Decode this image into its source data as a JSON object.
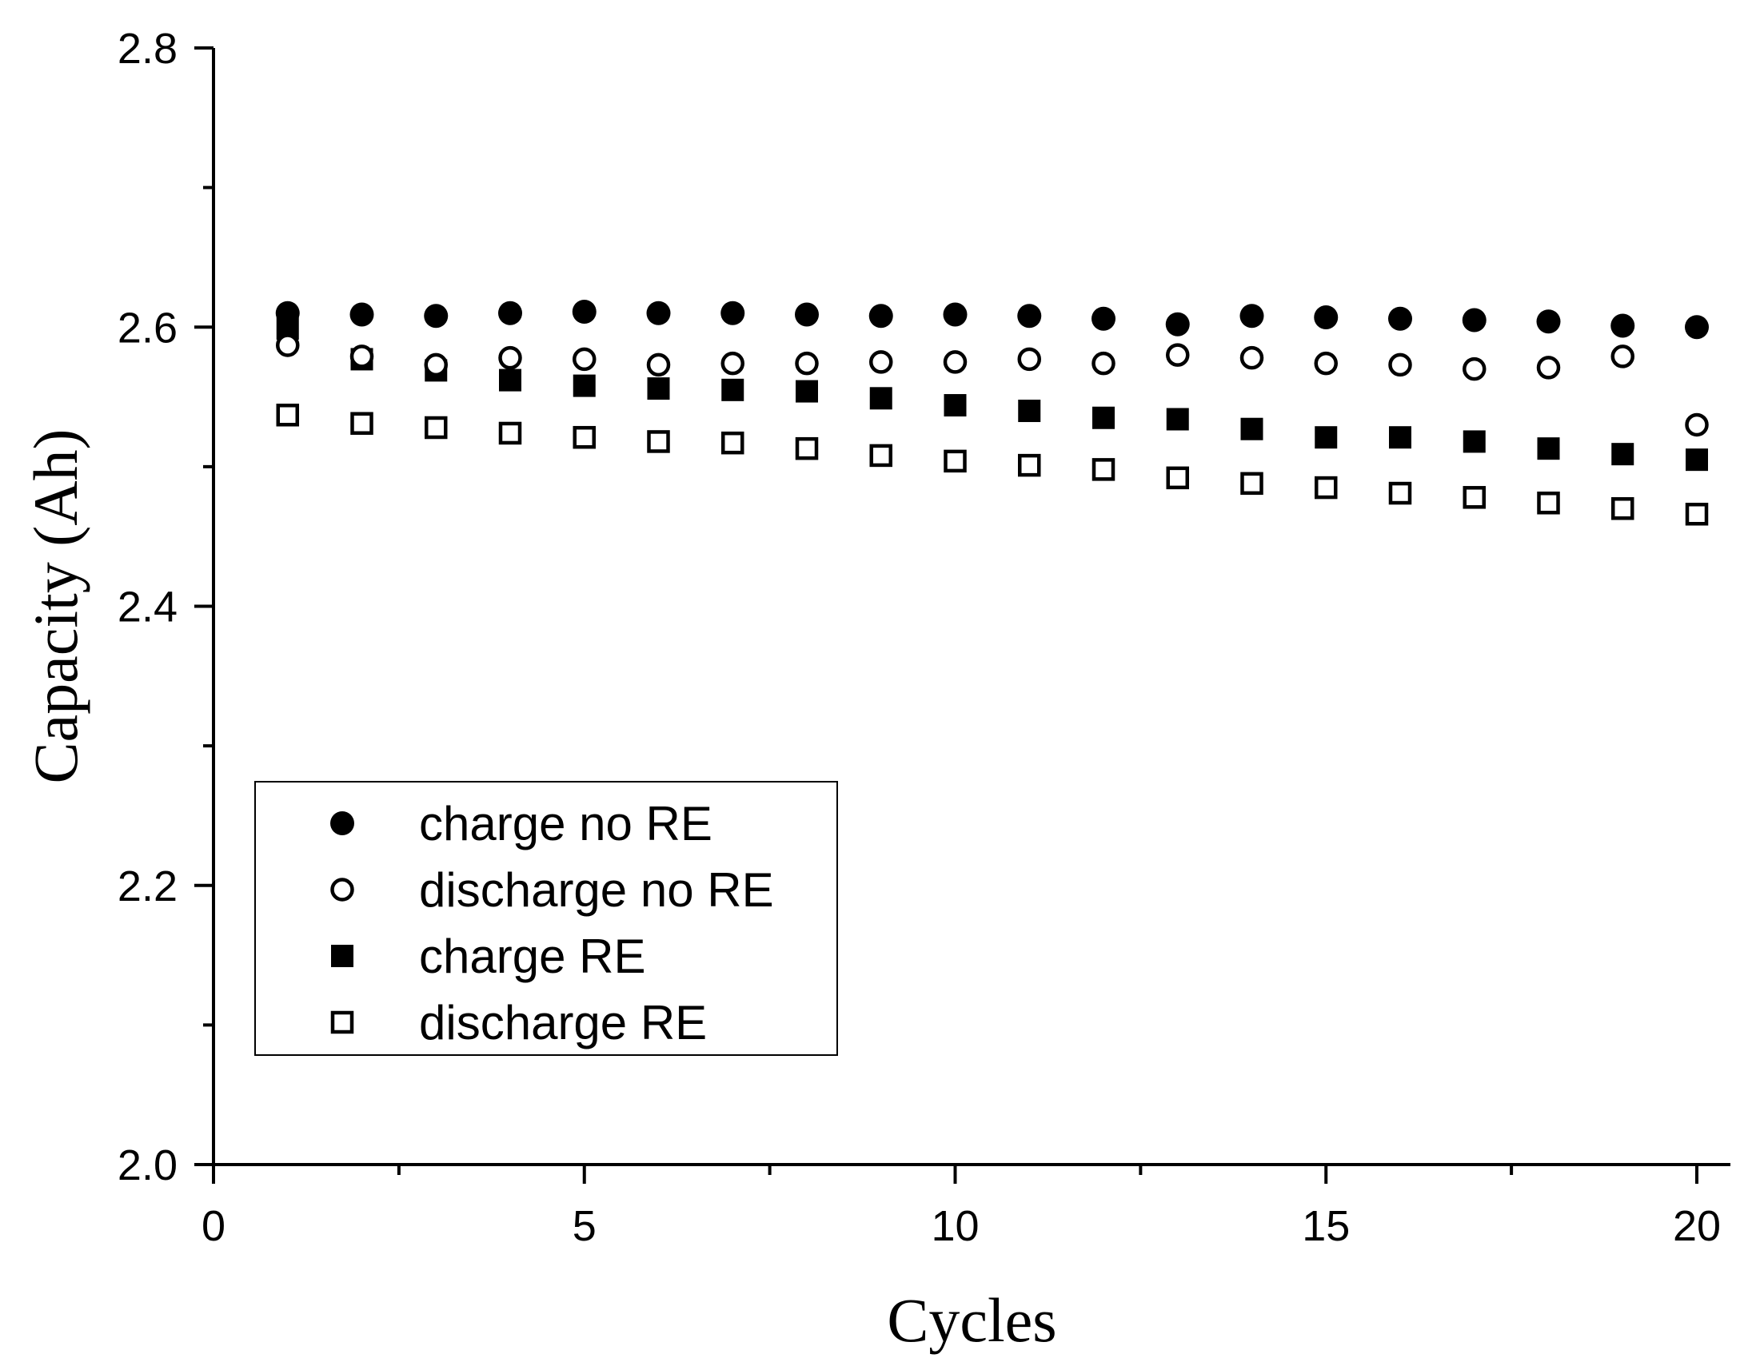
{
  "chart_data": {
    "type": "scatter",
    "title": "",
    "xlabel": "Cycles",
    "ylabel": "Capacity (Ah)",
    "xlim": [
      0,
      20.5
    ],
    "ylim": [
      2.0,
      2.8
    ],
    "x_ticks": [
      0,
      5,
      10,
      15,
      20
    ],
    "x_tick_labels": [
      "0",
      "5",
      "10",
      "15",
      "20"
    ],
    "x_minor_ticks": [
      2.5,
      7.5,
      12.5,
      17.5
    ],
    "y_ticks": [
      2.0,
      2.2,
      2.4,
      2.6,
      2.8
    ],
    "y_tick_labels": [
      "2.0",
      "2.2",
      "2.4",
      "2.6",
      "2.8"
    ],
    "y_minor_ticks": [
      2.1,
      2.3,
      2.5,
      2.7
    ],
    "grid": false,
    "legend_position": "lower-left",
    "x": [
      1,
      2,
      3,
      4,
      5,
      6,
      7,
      8,
      9,
      10,
      11,
      12,
      13,
      14,
      15,
      16,
      17,
      18,
      19,
      20
    ],
    "series": [
      {
        "name": "charge no RE",
        "marker": "filled-circle",
        "values": [
          2.61,
          2.609,
          2.608,
          2.61,
          2.611,
          2.61,
          2.61,
          2.609,
          2.608,
          2.609,
          2.608,
          2.606,
          2.602,
          2.608,
          2.607,
          2.606,
          2.605,
          2.604,
          2.601,
          2.6
        ]
      },
      {
        "name": "discharge no RE",
        "marker": "open-circle",
        "values": [
          2.587,
          2.579,
          2.573,
          2.578,
          2.577,
          2.573,
          2.574,
          2.574,
          2.575,
          2.575,
          2.577,
          2.574,
          2.58,
          2.578,
          2.574,
          2.573,
          2.57,
          2.571,
          2.579,
          2.53
        ]
      },
      {
        "name": "charge RE",
        "marker": "filled-square",
        "values": [
          2.599,
          2.577,
          2.569,
          2.562,
          2.558,
          2.556,
          2.555,
          2.554,
          2.549,
          2.544,
          2.54,
          2.535,
          2.534,
          2.527,
          2.521,
          2.521,
          2.518,
          2.513,
          2.509,
          2.505
        ]
      },
      {
        "name": "discharge RE",
        "marker": "open-square",
        "values": [
          2.537,
          2.531,
          2.528,
          2.524,
          2.521,
          2.518,
          2.517,
          2.513,
          2.508,
          2.504,
          2.501,
          2.498,
          2.492,
          2.488,
          2.485,
          2.481,
          2.478,
          2.474,
          2.47,
          2.466
        ]
      }
    ],
    "colors": {
      "axis": "#000000",
      "marker": "#000000",
      "background": "#ffffff"
    }
  }
}
